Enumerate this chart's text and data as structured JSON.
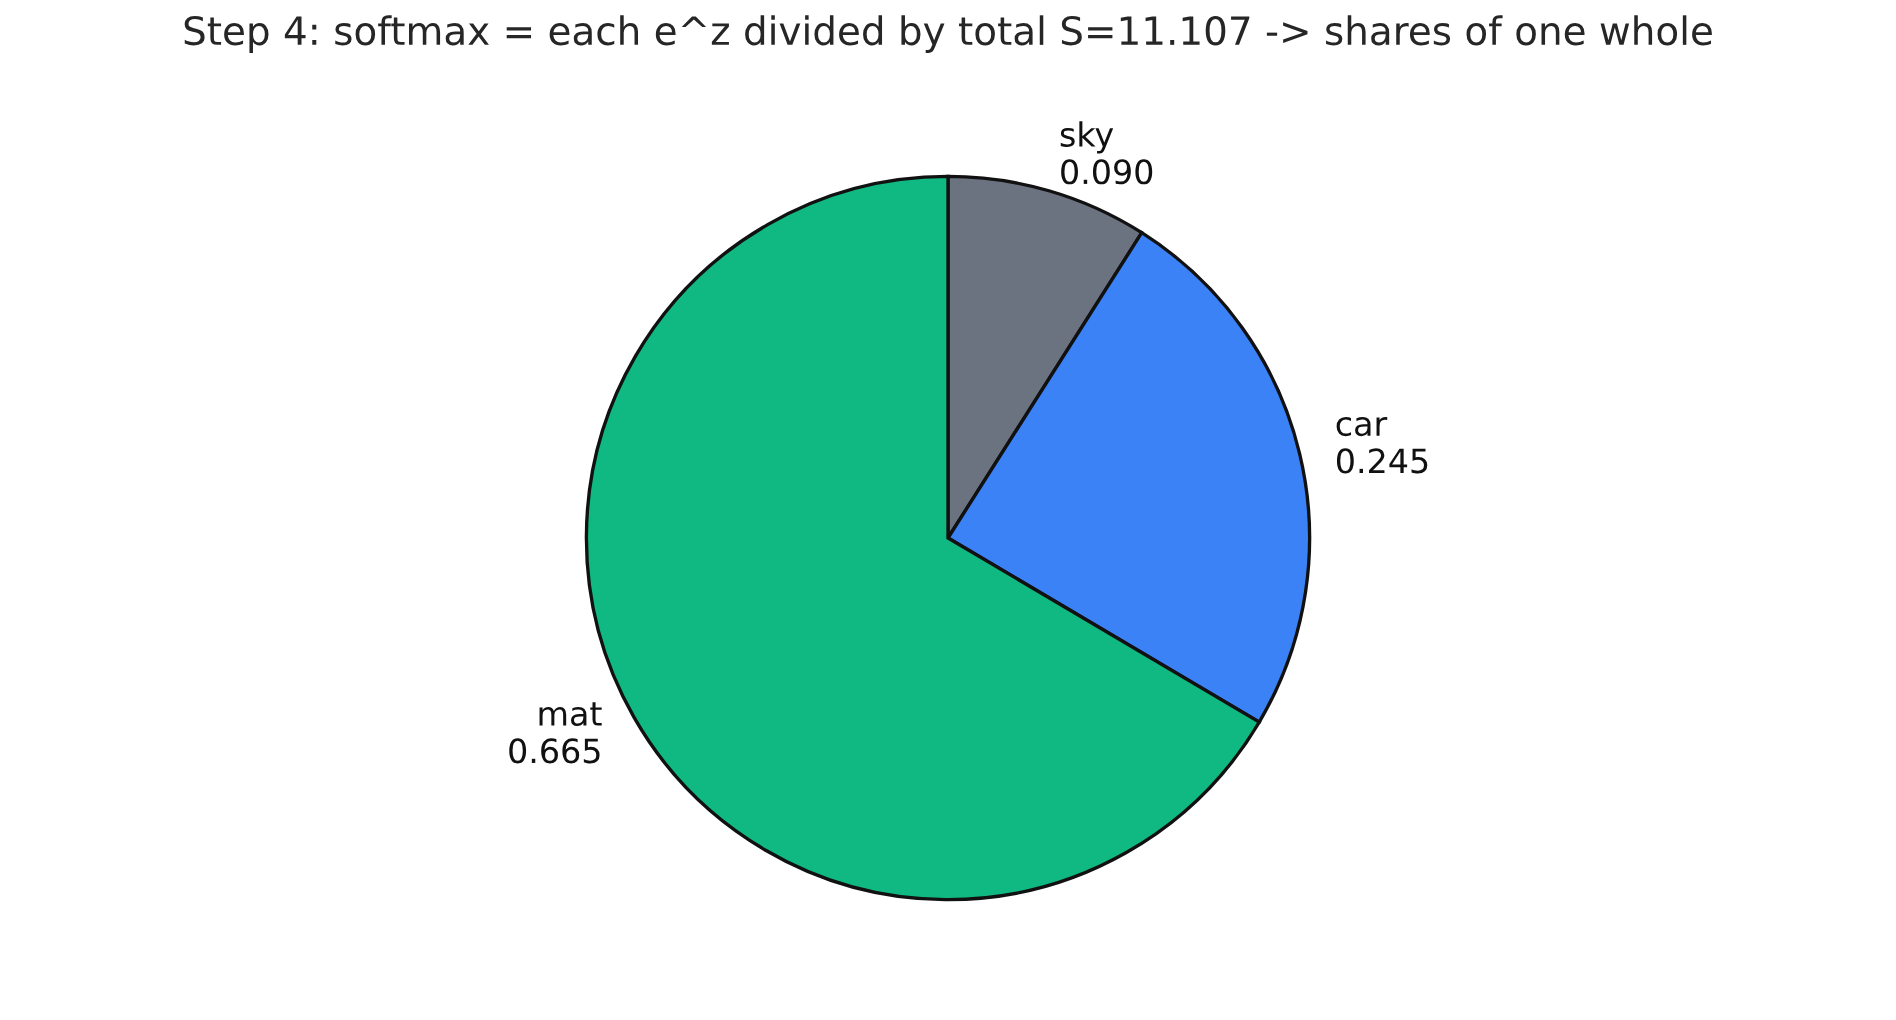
{
  "chart_data": {
    "type": "pie",
    "title": "Step 4: softmax = each e^z divided by total S=11.107 -> shares of one whole",
    "categories": [
      "sky",
      "car",
      "mat"
    ],
    "values": [
      0.09,
      0.245,
      0.665
    ],
    "value_labels": [
      "0.090",
      "0.245",
      "0.665"
    ],
    "colors": [
      "#6b7280",
      "#3b82f6",
      "#10b981"
    ]
  }
}
